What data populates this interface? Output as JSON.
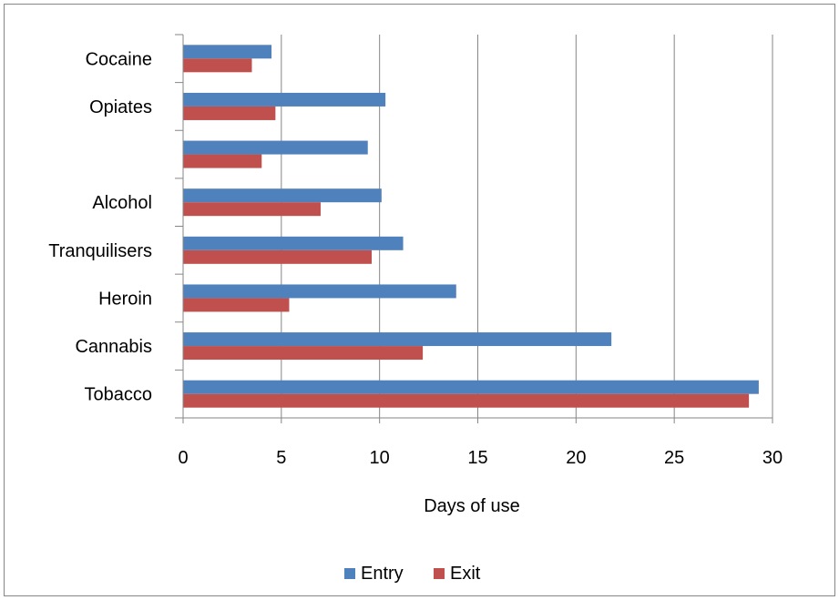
{
  "chart_data": {
    "type": "bar",
    "orientation": "horizontal",
    "categories": [
      "Tobacco",
      "Cannabis",
      "Heroin",
      "Tranquilisers",
      "Alcohol",
      "",
      "Opiates",
      "Cocaine"
    ],
    "series": [
      {
        "name": "Entry",
        "color": "#4f81bd",
        "values": [
          29.3,
          21.8,
          13.9,
          11.2,
          10.1,
          9.4,
          10.3,
          4.5
        ]
      },
      {
        "name": "Exit",
        "color": "#c0504d",
        "values": [
          28.8,
          12.2,
          5.4,
          9.6,
          7.0,
          4.0,
          4.7,
          3.5
        ]
      }
    ],
    "xlabel": "Days of use",
    "ylabel": "",
    "xlim": [
      0,
      30
    ],
    "xticks": [
      "0",
      "5",
      "10",
      "15",
      "20",
      "25",
      "30"
    ],
    "grid": "vertical",
    "legend_position": "bottom"
  }
}
